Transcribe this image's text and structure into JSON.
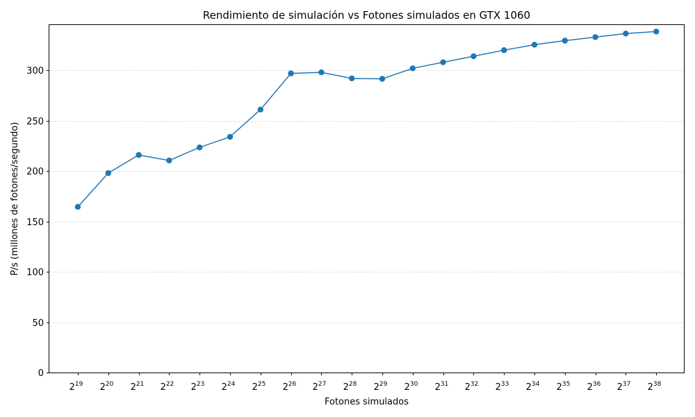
{
  "chart_data": {
    "type": "line",
    "title": "Rendimiento de simulación vs Fotones simulados en GTX 1060",
    "xlabel": "Fotones simulados",
    "ylabel": "P/s (millones de fotones/segundo)",
    "x_tick_base": "2",
    "x_exponents": [
      "19",
      "20",
      "21",
      "22",
      "23",
      "24",
      "25",
      "26",
      "27",
      "28",
      "29",
      "30",
      "31",
      "32",
      "33",
      "34",
      "35",
      "36",
      "37",
      "38"
    ],
    "values": [
      164.5,
      198,
      216,
      210.5,
      223.5,
      234,
      261,
      297,
      298,
      292,
      291.5,
      302,
      308,
      314,
      320,
      325.5,
      329.5,
      333,
      336.5,
      338.5
    ],
    "ylim": [
      0,
      345
    ],
    "y_ticks": [
      0,
      50,
      100,
      150,
      200,
      250,
      300
    ],
    "y_grid": true,
    "x_grid": false,
    "color": "#1f77b4",
    "grid_color": "#b0b0b0"
  }
}
